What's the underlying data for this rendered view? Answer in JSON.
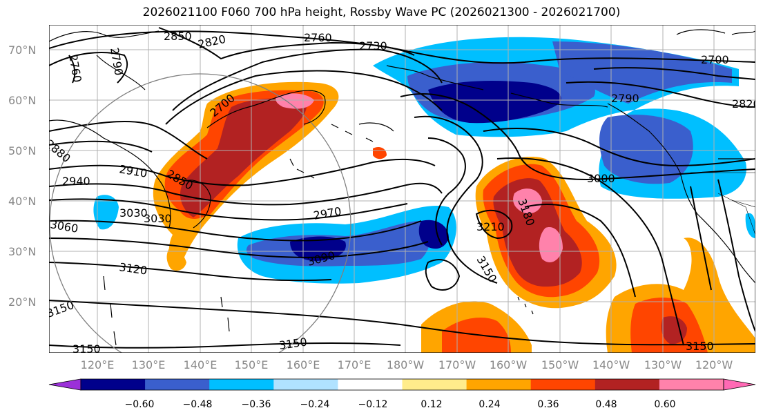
{
  "title": "2026021100 F060 700 hPa height, Rossby Wave PC (2026021300 - 2026021700)",
  "lat_labels": [
    "70°N",
    "60°N",
    "50°N",
    "40°N",
    "30°N",
    "20°N"
  ],
  "lon_labels": [
    "120°E",
    "130°E",
    "140°E",
    "150°E",
    "160°E",
    "170°E",
    "180°W",
    "170°W",
    "160°W",
    "150°W",
    "140°W",
    "130°W",
    "120°W"
  ],
  "contour_labels": [
    "2850",
    "2820",
    "2760",
    "2730",
    "2700",
    "2760",
    "2790",
    "2880",
    "2910",
    "2940",
    "2850",
    "2700",
    "2790",
    "2820",
    "3000",
    "2970",
    "3060",
    "3030",
    "3030",
    "3090",
    "3180",
    "3210",
    "3120",
    "3150",
    "3150",
    "3150",
    "3150",
    "3150"
  ],
  "colorbar": {
    "ticks": [
      "−0.60",
      "−0.48",
      "−0.36",
      "−0.24",
      "−0.12",
      "0.12",
      "0.24",
      "0.36",
      "0.48",
      "0.60"
    ],
    "colors": [
      "#9b30d9",
      "#00008b",
      "#3a5fcd",
      "#00bfff",
      "#b0e2ff",
      "#ffffff",
      "#ffec8b",
      "#ffa500",
      "#ff4500",
      "#b22222",
      "#ff82ab",
      "#ff69b4"
    ]
  }
}
